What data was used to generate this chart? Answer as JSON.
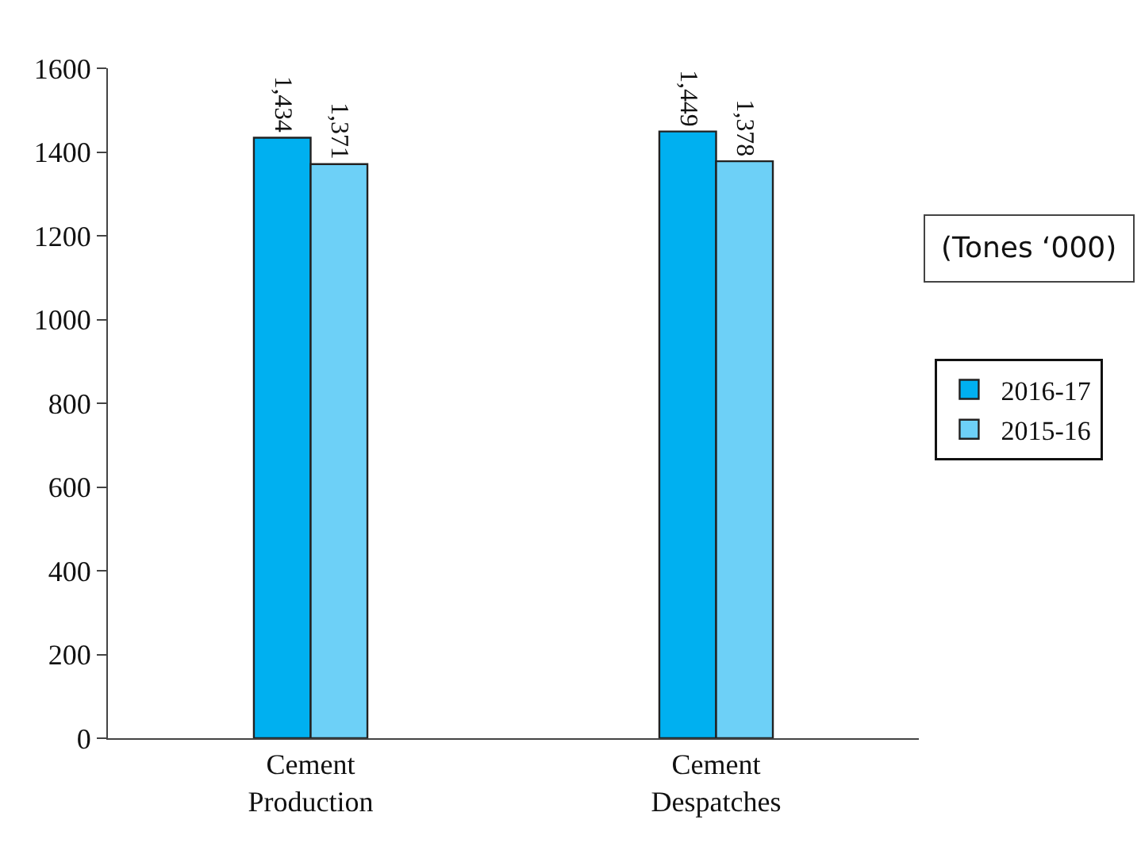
{
  "chart_data": {
    "type": "bar",
    "categories": [
      "Cement Production",
      "Cement Despatches"
    ],
    "series": [
      {
        "name": "2016-17",
        "color": "#00b0f0",
        "values": [
          1434,
          1449
        ],
        "value_labels": [
          "1,434",
          "1,449"
        ]
      },
      {
        "name": "2015-16",
        "color": "#6dd0f7",
        "values": [
          1371,
          1378
        ],
        "value_labels": [
          "1,371",
          "1,378"
        ]
      }
    ],
    "ylim": [
      0,
      1600
    ],
    "yticks": [
      0,
      200,
      400,
      600,
      800,
      1000,
      1200,
      1400,
      1600
    ],
    "grid": false,
    "legend": "right",
    "annotations": [
      "(Tones ‘000)"
    ]
  }
}
